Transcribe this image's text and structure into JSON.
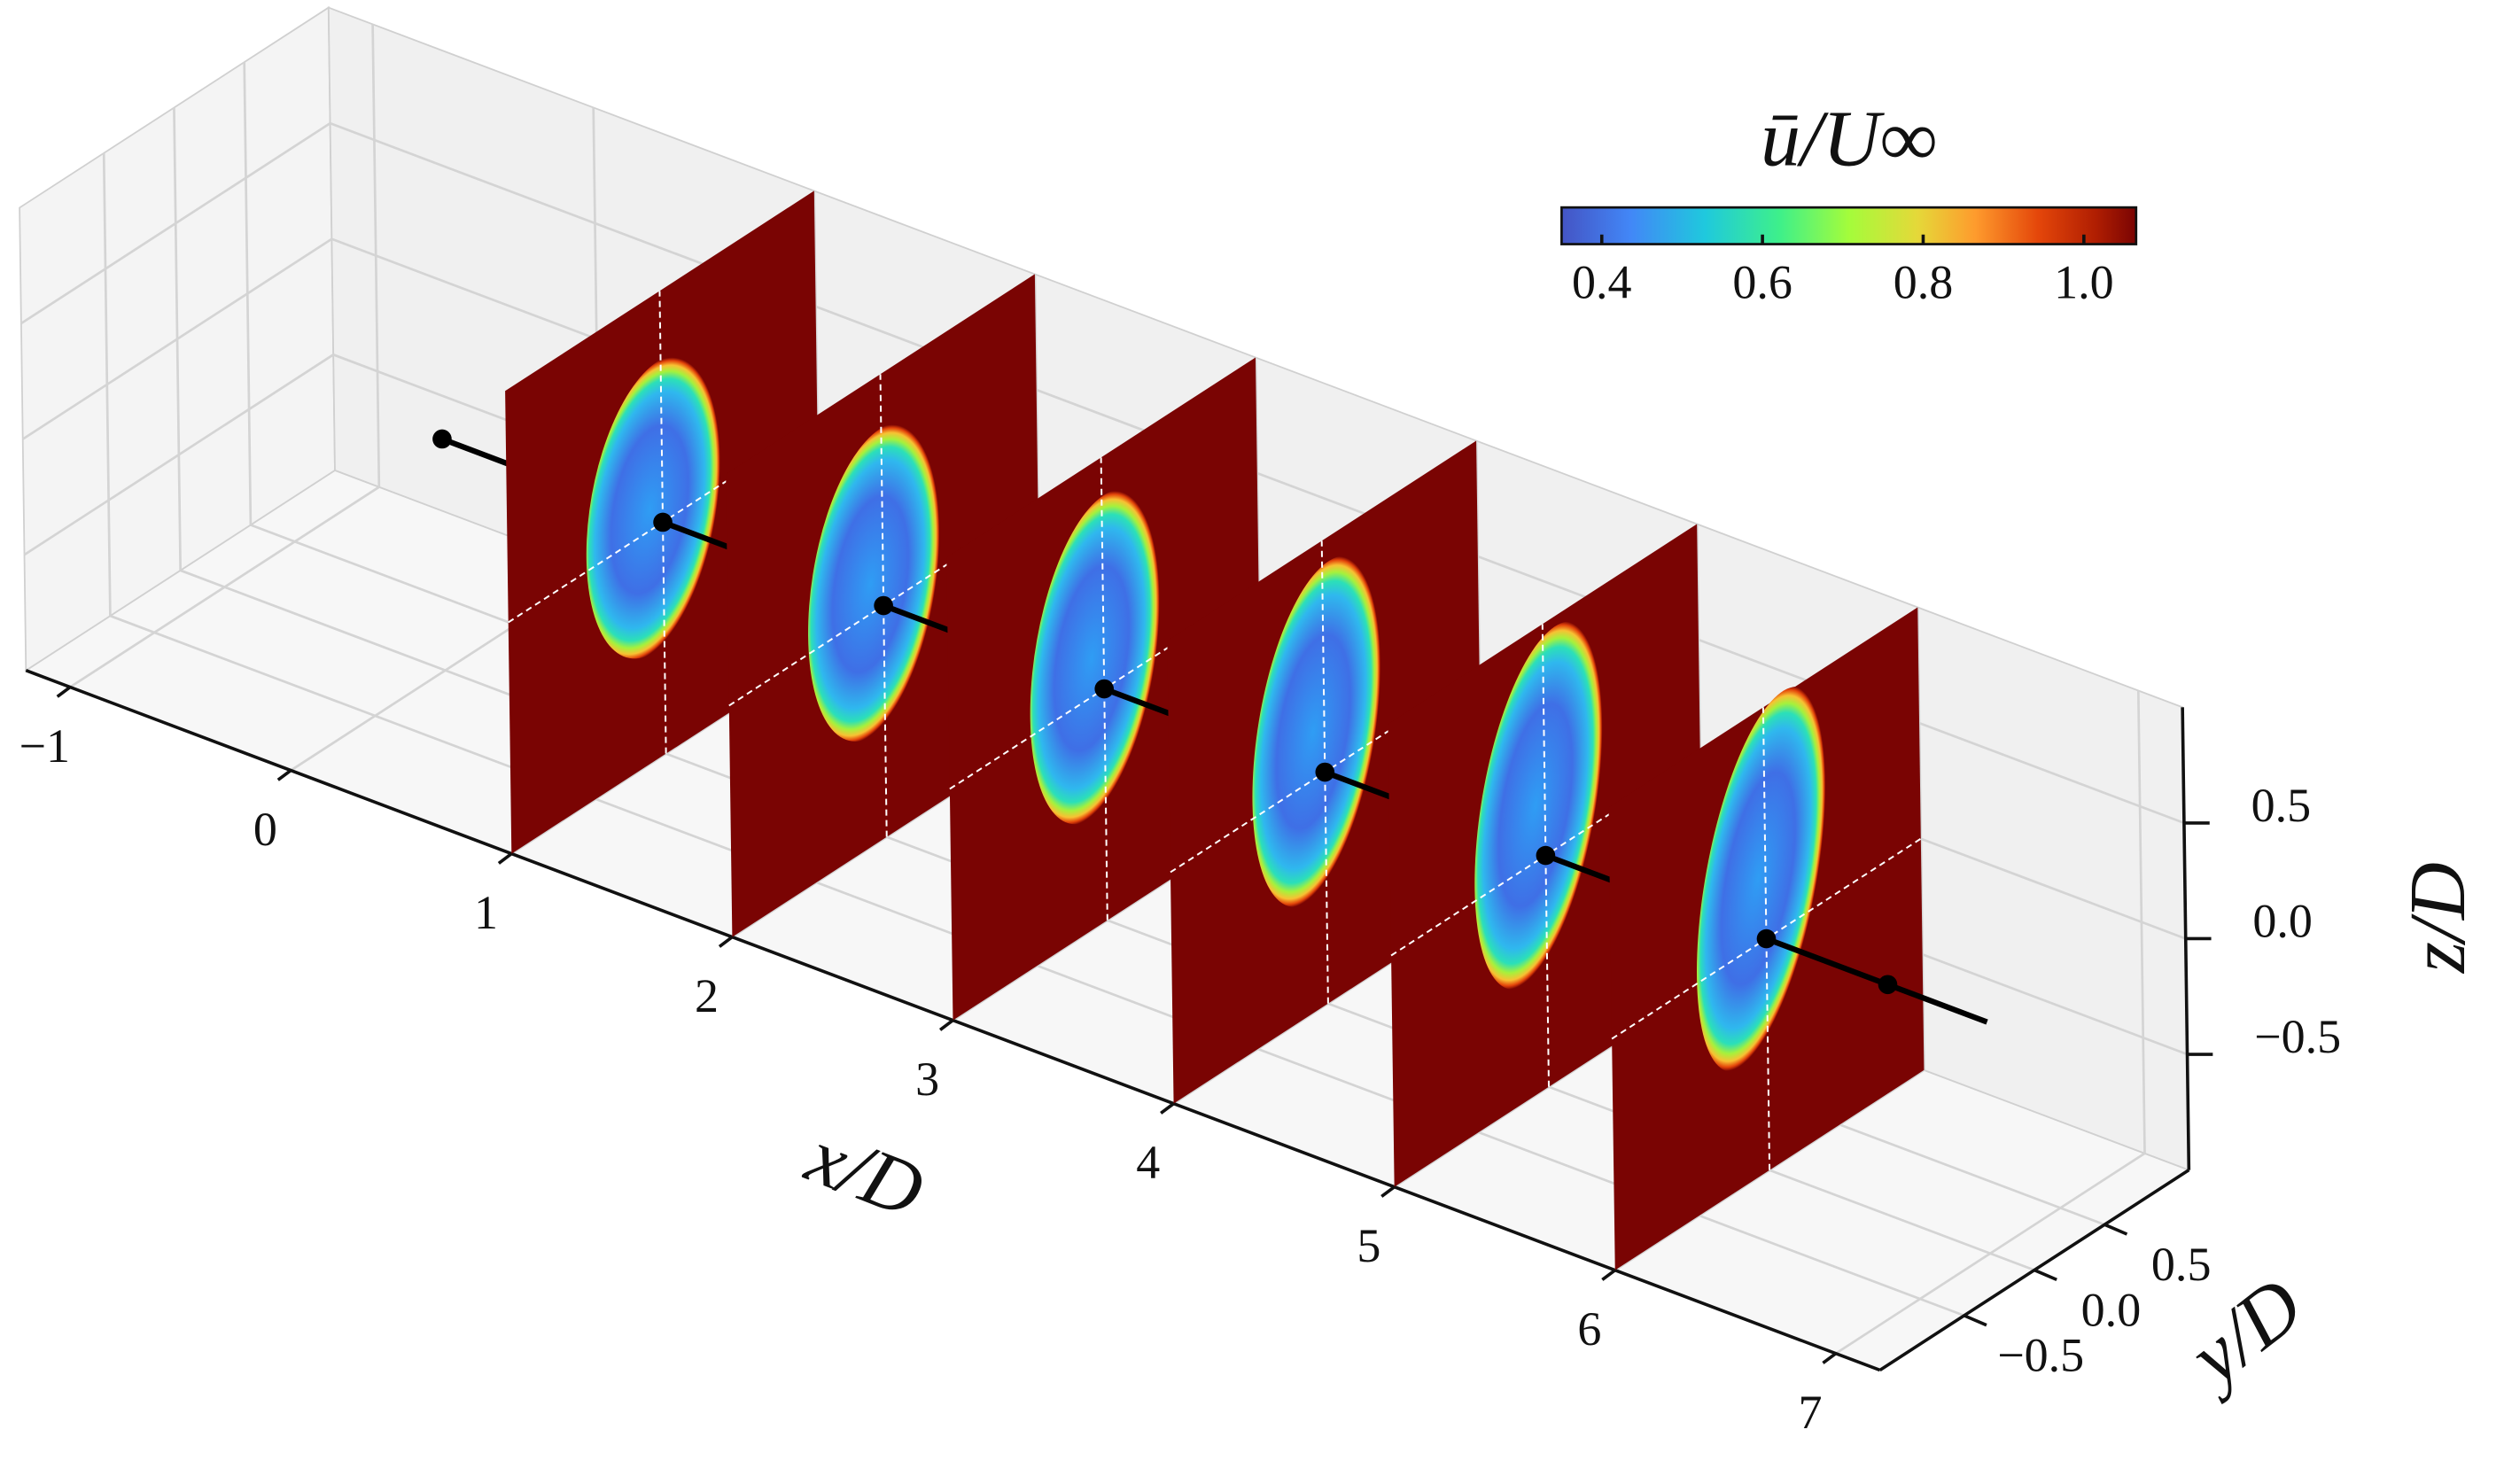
{
  "chart_data": {
    "type": "slices3d",
    "xlabel": "x/D",
    "ylabel": "y/D",
    "zlabel": "z/D",
    "xlim": [
      -1.2,
      7.2
    ],
    "ylim": [
      -1.1,
      1.1
    ],
    "zlim": [
      -1,
      1
    ],
    "xticks": [
      {
        "value": -1,
        "label": "−1"
      },
      0,
      1,
      2,
      3,
      4,
      5,
      6,
      7
    ],
    "yticks": [
      {
        "value": -0.5,
        "label": "−0.5"
      },
      {
        "value": 0,
        "label": "0.0"
      },
      0.5
    ],
    "zticks": [
      {
        "value": -0.5,
        "label": "−0.5"
      },
      {
        "value": 0,
        "label": "0.0"
      },
      0.5
    ],
    "slices": [
      1,
      2,
      3,
      4,
      5,
      6
    ],
    "grid": true,
    "colorbar": {
      "label": "ū/U∞",
      "colormap": "turbo",
      "clim": [
        0.35,
        1.065
      ],
      "ticks": [
        0.4,
        0.6,
        0.8,
        {
          "value": 1,
          "label": "1.0"
        }
      ]
    }
  }
}
